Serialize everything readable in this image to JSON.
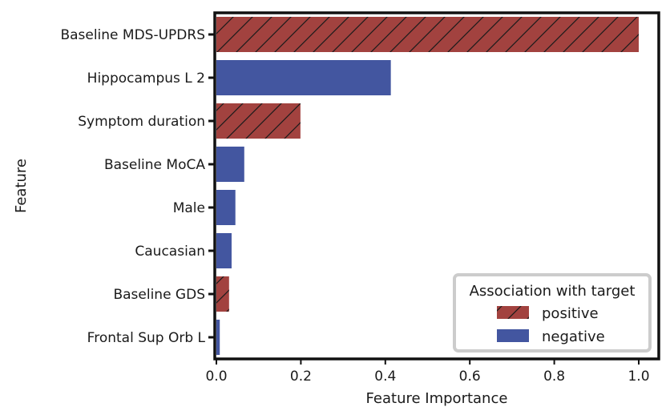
{
  "chart_data": {
    "type": "bar",
    "orientation": "horizontal",
    "categories": [
      "Baseline MDS-UPDRS",
      "Hippocampus L 2",
      "Symptom duration",
      "Baseline MoCA",
      "Male",
      "Caucasian",
      "Baseline GDS",
      "Frontal Sup Orb L"
    ],
    "values": [
      1.0,
      0.413,
      0.199,
      0.066,
      0.045,
      0.036,
      0.03,
      0.008
    ],
    "association": [
      "positive",
      "negative",
      "positive",
      "negative",
      "negative",
      "negative",
      "positive",
      "negative"
    ],
    "xlabel": "Feature Importance",
    "ylabel": "Feature",
    "xlim": [
      0,
      1.05
    ],
    "xticks": [
      "0.0",
      "0.2",
      "0.4",
      "0.6",
      "0.8",
      "1.0"
    ],
    "xtick_values": [
      0,
      0.2,
      0.4,
      0.6,
      0.8,
      1.0
    ],
    "grid": false,
    "legend": {
      "title": "Association with target",
      "placement": "bottom-right",
      "entries": [
        {
          "label": "positive",
          "color": "#a2423f",
          "hatch": "diagonal"
        },
        {
          "label": "negative",
          "color": "#4356a0",
          "hatch": "none"
        }
      ]
    },
    "colors": {
      "positive": "#a2423f",
      "negative": "#4356a0"
    }
  }
}
